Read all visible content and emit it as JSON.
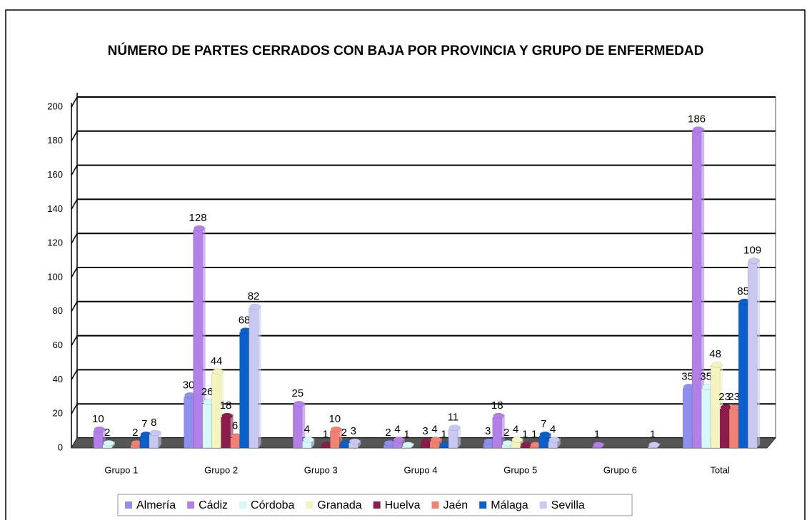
{
  "chart_data": {
    "type": "bar",
    "title": "NÚMERO DE PARTES CERRADOS CON BAJA POR PROVINCIA Y GRUPO DE ENFERMEDAD",
    "categories": [
      "Grupo 1",
      "Grupo 2",
      "Grupo 3",
      "Grupo 4",
      "Grupo 5",
      "Grupo 6",
      "Total"
    ],
    "series": [
      {
        "name": "Almería",
        "color": "#8f8ff0",
        "values": [
          null,
          30,
          null,
          2,
          3,
          null,
          35
        ]
      },
      {
        "name": "Cádiz",
        "color": "#b380e8",
        "values": [
          10,
          128,
          25,
          4,
          18,
          1,
          186
        ]
      },
      {
        "name": "Córdoba",
        "color": "#d6f8f8",
        "values": [
          2,
          26,
          4,
          1,
          2,
          null,
          35
        ]
      },
      {
        "name": "Granada",
        "color": "#f4f4c0",
        "values": [
          null,
          44,
          null,
          null,
          4,
          null,
          48
        ]
      },
      {
        "name": "Huelva",
        "color": "#8c1c4c",
        "values": [
          null,
          18,
          1,
          3,
          1,
          null,
          23
        ]
      },
      {
        "name": "Jaén",
        "color": "#f08274",
        "values": [
          2,
          6,
          10,
          4,
          1,
          null,
          23
        ]
      },
      {
        "name": "Málaga",
        "color": "#0a5fc8",
        "values": [
          7,
          68,
          2,
          1,
          7,
          null,
          85
        ]
      },
      {
        "name": "Sevilla",
        "color": "#c8c8f2",
        "values": [
          8,
          82,
          3,
          11,
          4,
          1,
          109
        ]
      }
    ],
    "ylim": [
      0,
      200
    ],
    "yticks": [
      0,
      20,
      40,
      60,
      80,
      100,
      120,
      140,
      160,
      180,
      200
    ],
    "grid": true,
    "legend": "bottom"
  }
}
